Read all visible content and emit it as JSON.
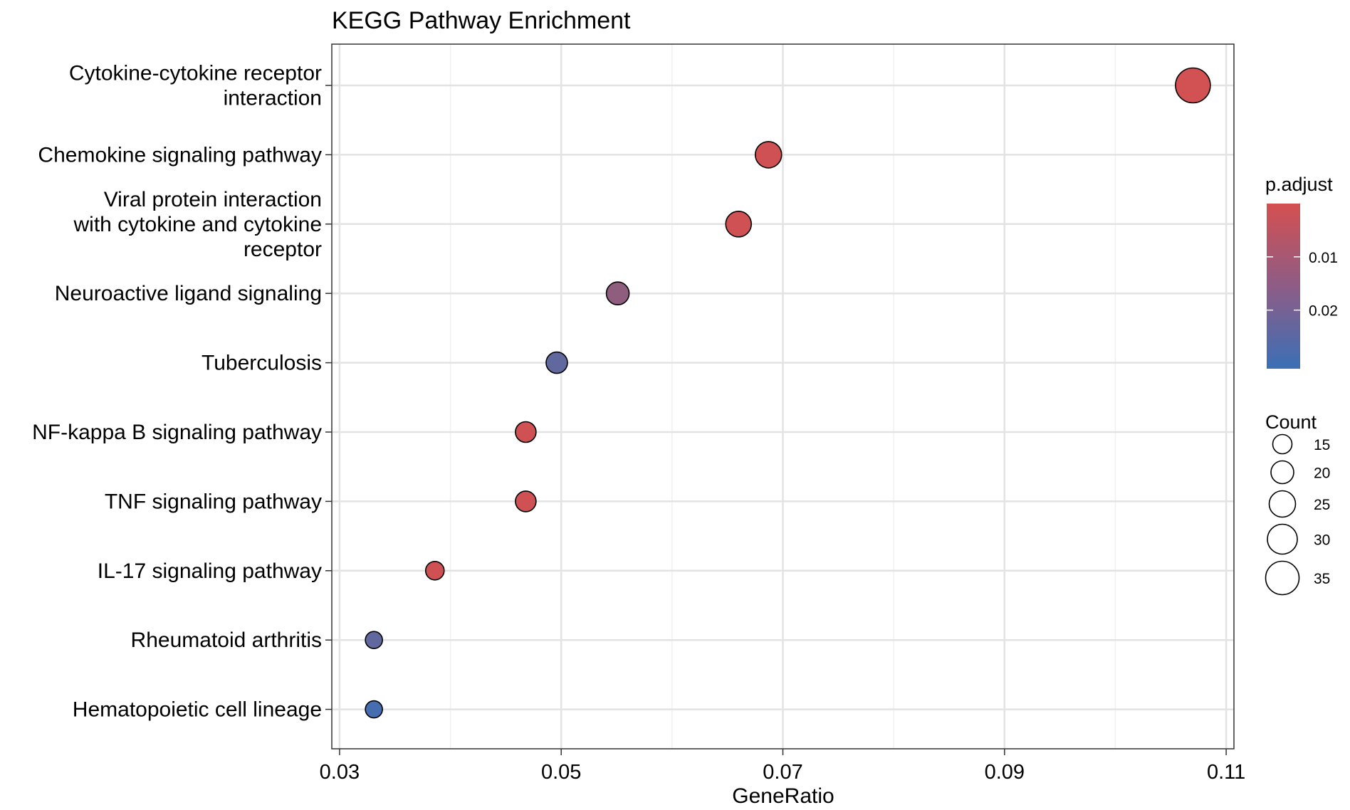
{
  "chart_data": {
    "type": "scatter",
    "title": "KEGG Pathway Enrichment",
    "xlabel": "GeneRatio",
    "ylabel": "",
    "xlim": [
      0.0293,
      0.1107
    ],
    "x_ticks": [
      {
        "value": 0.03,
        "label": "0.03"
      },
      {
        "value": 0.05,
        "label": "0.05"
      },
      {
        "value": 0.07,
        "label": "0.07"
      },
      {
        "value": 0.09,
        "label": "0.09"
      },
      {
        "value": 0.11,
        "label": "0.11"
      }
    ],
    "categories": [
      {
        "label": [
          "Cytokine-cytokine receptor",
          "interaction"
        ],
        "gene_ratio": 0.107,
        "count": 37,
        "p_adjust": 0.0005
      },
      {
        "label": [
          "Chemokine signaling pathway"
        ],
        "gene_ratio": 0.0687,
        "count": 25,
        "p_adjust": 0.0008
      },
      {
        "label": [
          "Viral protein interaction",
          "with cytokine and cytokine",
          "receptor"
        ],
        "gene_ratio": 0.066,
        "count": 24,
        "p_adjust": 0.0008
      },
      {
        "label": [
          "Neuroactive ligand signaling"
        ],
        "gene_ratio": 0.0551,
        "count": 20,
        "p_adjust": 0.0139
      },
      {
        "label": [
          "Tuberculosis"
        ],
        "gene_ratio": 0.0496,
        "count": 18,
        "p_adjust": 0.0236
      },
      {
        "label": [
          "NF-kappa B signaling pathway"
        ],
        "gene_ratio": 0.0468,
        "count": 17,
        "p_adjust": 0.0008
      },
      {
        "label": [
          "TNF signaling pathway"
        ],
        "gene_ratio": 0.0468,
        "count": 17,
        "p_adjust": 0.0008
      },
      {
        "label": [
          "IL-17 signaling pathway"
        ],
        "gene_ratio": 0.0386,
        "count": 14,
        "p_adjust": 0.0008
      },
      {
        "label": [
          "Rheumatoid arthritis"
        ],
        "gene_ratio": 0.0331,
        "count": 12,
        "p_adjust": 0.0236
      },
      {
        "label": [
          "Hematopoietic cell lineage"
        ],
        "gene_ratio": 0.0331,
        "count": 12,
        "p_adjust": 0.029
      }
    ],
    "color_legend": {
      "title": "p.adjust",
      "low_color": "#3B6FB6",
      "high_color": "#D45050",
      "range": [
        0.0,
        0.031
      ],
      "ticks": [
        {
          "value": 0.01,
          "label": "0.01"
        },
        {
          "value": 0.02,
          "label": "0.02"
        }
      ]
    },
    "size_legend": {
      "title": "Count",
      "entries": [
        {
          "value": 15,
          "label": "15"
        },
        {
          "value": 20,
          "label": "20"
        },
        {
          "value": 25,
          "label": "25"
        },
        {
          "value": 30,
          "label": "30"
        },
        {
          "value": 35,
          "label": "35"
        }
      ]
    },
    "grid": true,
    "legend_position": "right"
  }
}
